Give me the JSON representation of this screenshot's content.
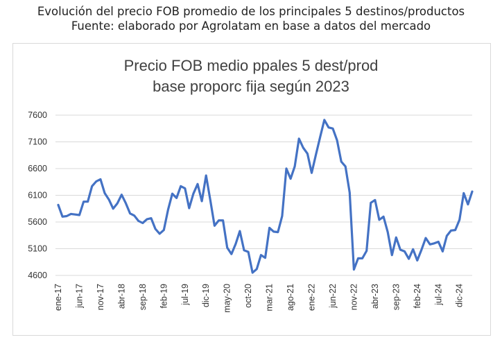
{
  "header": {
    "line1": "Evolución del precio FOB promedio de los principales 5 destinos/productos",
    "line2": "Fuente: elaborado por Agrolatam en base a datos del mercado"
  },
  "colors": {
    "line": "#4472C4",
    "grid": "#d9d9d9",
    "text": "#333333"
  },
  "chart_data": {
    "type": "line",
    "title": "Precio FOB medio ppales 5 dest/prod",
    "subtitle": "base proporc fija según 2023",
    "xlabel": "",
    "ylabel": "",
    "ylim": [
      4600,
      7600
    ],
    "yticks": [
      4600,
      5100,
      5600,
      6100,
      6600,
      7100,
      7600
    ],
    "grid": true,
    "legend": "none",
    "x_tick_labels": [
      "ene-17",
      "jun-17",
      "nov-17",
      "abr-18",
      "sep-18",
      "feb-19",
      "jul-19",
      "dic-19",
      "may-20",
      "oct-20",
      "mar-21",
      "ago-21",
      "ene-22",
      "jun-22",
      "nov-22",
      "abr-23",
      "sep-23",
      "feb-24",
      "jul-24",
      "dic-24"
    ],
    "x_tick_every": 5,
    "series": [
      {
        "values": [
          5920,
          5700,
          5710,
          5750,
          5740,
          5730,
          5980,
          5980,
          6270,
          6360,
          6400,
          6140,
          6020,
          5850,
          5950,
          6110,
          5950,
          5760,
          5720,
          5620,
          5580,
          5650,
          5670,
          5470,
          5380,
          5450,
          5830,
          6130,
          6050,
          6270,
          6230,
          5860,
          6130,
          6310,
          5990,
          6470,
          6010,
          5530,
          5630,
          5630,
          5120,
          5000,
          5190,
          5430,
          5070,
          5040,
          4650,
          4720,
          4980,
          4930,
          5490,
          5420,
          5410,
          5710,
          6600,
          6410,
          6640,
          7160,
          6990,
          6880,
          6520,
          6860,
          7190,
          7510,
          7370,
          7350,
          7130,
          6730,
          6640,
          6150,
          4710,
          4920,
          4920,
          5060,
          5960,
          6010,
          5640,
          5700,
          5410,
          4980,
          5310,
          5080,
          5050,
          4910,
          5090,
          4880,
          5080,
          5300,
          5180,
          5200,
          5230,
          5050,
          5340,
          5440,
          5450,
          5640,
          6140,
          5930,
          6170
        ]
      }
    ]
  }
}
